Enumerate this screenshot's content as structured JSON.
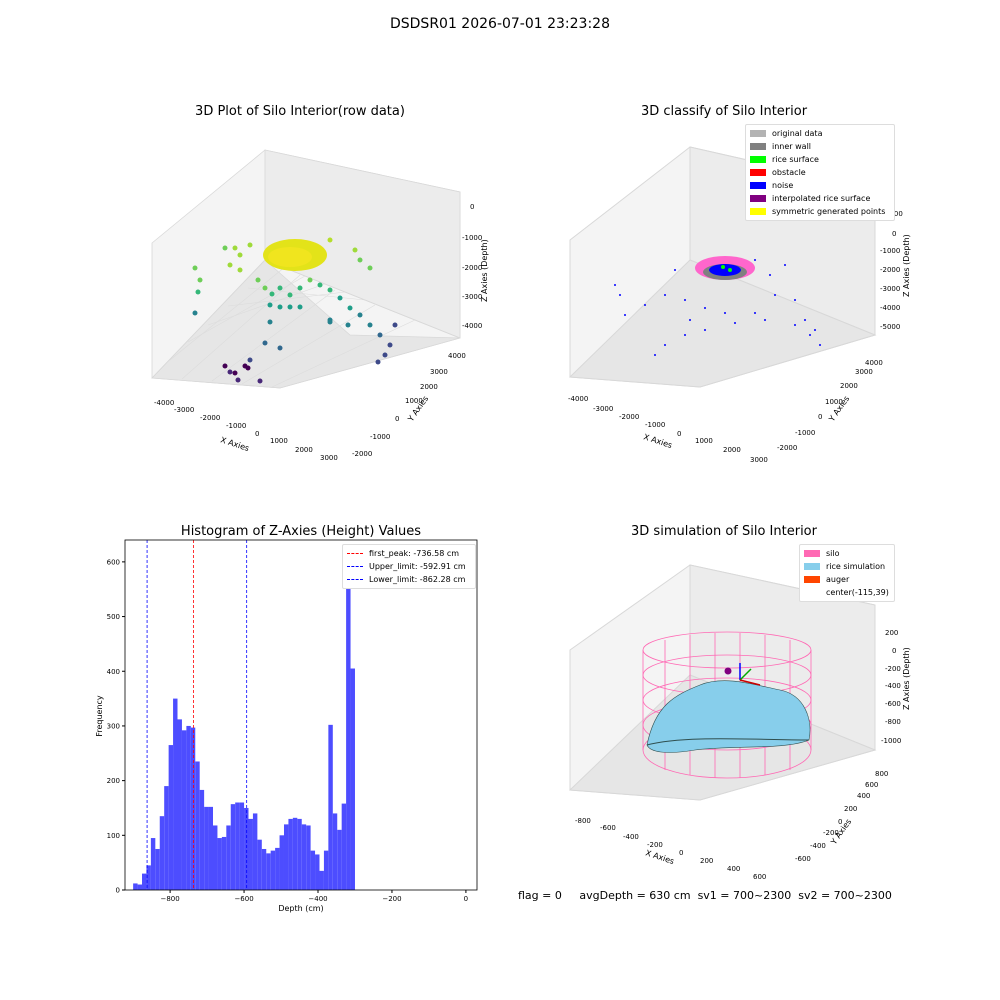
{
  "suptitle": "DSDSR01 2026-07-01 23:23:28",
  "raw_plot": {
    "title": "3D Plot of Silo Interior(row data)",
    "x_label": "X Axies",
    "y_label": "Y Axies",
    "z_label": "Z Axies (Depth)",
    "x_ticks": [
      "-4000",
      "-3000",
      "-2000",
      "-1000",
      "0",
      "1000",
      "2000",
      "3000"
    ],
    "y_ticks": [
      "-2000",
      "-1000",
      "0",
      "1000",
      "2000",
      "3000",
      "4000"
    ],
    "z_ticks": [
      "0",
      "-1000",
      "-2000",
      "-3000",
      "-4000"
    ]
  },
  "classify_plot": {
    "title": "3D classify of Silo Interior",
    "x_label": "X Axies",
    "y_label": "Y Axies",
    "z_label": "Z Axies (Depth)",
    "x_ticks": [
      "-4000",
      "-3000",
      "-2000",
      "-1000",
      "0",
      "1000",
      "2000",
      "3000"
    ],
    "y_ticks": [
      "-2000",
      "-1000",
      "0",
      "1000",
      "2000",
      "3000",
      "4000"
    ],
    "z_ticks": [
      "1000",
      "0",
      "-1000",
      "-2000",
      "-3000",
      "-4000",
      "-5000"
    ],
    "legend": [
      {
        "label": "original data",
        "color": "#b3b3b3"
      },
      {
        "label": "inner wall",
        "color": "#808080"
      },
      {
        "label": "rice surface",
        "color": "#00ff00"
      },
      {
        "label": "obstacle",
        "color": "#ff0000"
      },
      {
        "label": "noise",
        "color": "#0000ff"
      },
      {
        "label": "interpolated rice surface",
        "color": "#800080"
      },
      {
        "label": "symmetric generated points",
        "color": "#ffff00"
      }
    ]
  },
  "sim_plot": {
    "title": "3D simulation of Silo Interior",
    "x_label": "X Axies",
    "y_label": "Y Axies",
    "z_label": "Z Axies (Depth)",
    "x_ticks": [
      "-800",
      "-600",
      "-400",
      "-200",
      "0",
      "200",
      "400",
      "600"
    ],
    "y_ticks": [
      "-600",
      "-400",
      "-200",
      "0",
      "200",
      "400",
      "600",
      "800"
    ],
    "z_ticks": [
      "200",
      "0",
      "-200",
      "-400",
      "-600",
      "-800",
      "-1000"
    ],
    "legend": [
      {
        "label": "silo",
        "color": "#ff69b4"
      },
      {
        "label": "rice simulation",
        "color": "#87ceeb"
      },
      {
        "label": "auger",
        "color": "#ff4500"
      },
      {
        "label": "center(-115,39)",
        "color": ""
      }
    ]
  },
  "chart_data": {
    "type": "bar",
    "title": "Histogram of Z-Axies (Height) Values",
    "xlabel": "Depth (cm)",
    "ylabel": "Frequency",
    "xlim": [
      -922,
      30
    ],
    "ylim": [
      0,
      640
    ],
    "x_ticks": [
      -800,
      -600,
      -400,
      -200,
      0
    ],
    "y_ticks": [
      0,
      100,
      200,
      300,
      400,
      500,
      600
    ],
    "bin_start": -900,
    "bin_width": 12,
    "values": [
      12,
      10,
      30,
      45,
      95,
      75,
      135,
      190,
      265,
      350,
      312,
      292,
      300,
      297,
      235,
      183,
      152,
      152,
      118,
      95,
      97,
      118,
      157,
      160,
      160,
      150,
      130,
      140,
      92,
      75,
      67,
      72,
      77,
      100,
      120,
      130,
      132,
      130,
      120,
      118,
      72,
      65,
      35,
      72,
      302,
      140,
      110,
      158,
      605,
      405
    ],
    "color": "#4d4dff",
    "vlines": [
      {
        "x": -736.58,
        "color": "#ff0000",
        "label": "first_peak: -736.58 cm"
      },
      {
        "x": -592.91,
        "color": "#0000ff",
        "label": "Upper_limit: -592.91 cm"
      },
      {
        "x": -862.28,
        "color": "#0000ff",
        "label": "Lower_limit: -862.28 cm"
      }
    ],
    "legend_position": "top-right"
  },
  "status": {
    "flag": "flag = 0",
    "avg_depth": "avgDepth = 630 cm",
    "sv1": "sv1 = 700~2300",
    "sv2": "sv2 = 700~2300"
  }
}
